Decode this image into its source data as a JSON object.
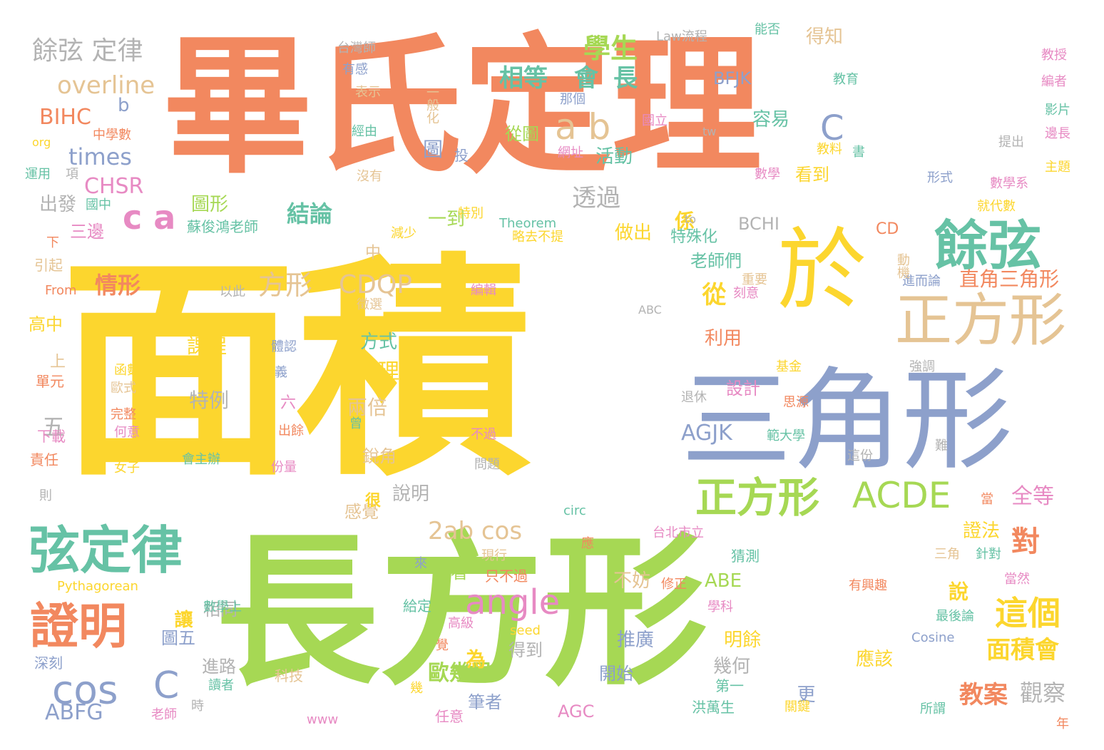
{
  "palette": {
    "orange": "#f2885f",
    "yellow": "#fcd62e",
    "green": "#a6d854",
    "blue": "#8da0cb",
    "teal": "#66c2a5",
    "pink": "#e78ac3",
    "tan": "#e5c494",
    "gray": "#b3b3b3"
  },
  "words": [
    {
      "text": "畢氏定理",
      "color": "orange"
    },
    {
      "text": "面積",
      "color": "yellow"
    },
    {
      "text": "長方形",
      "color": "green"
    },
    {
      "text": "三角形",
      "color": "blue"
    },
    {
      "text": "於",
      "color": "yellow"
    },
    {
      "text": "正方形",
      "color": "tan"
    },
    {
      "text": "餘弦",
      "color": "teal"
    },
    {
      "text": "弦定律",
      "color": "teal"
    },
    {
      "text": "證明",
      "color": "orange"
    },
    {
      "text": "正方形",
      "color": "green"
    },
    {
      "text": "ACDE",
      "color": "green"
    },
    {
      "text": "angle",
      "color": "pink"
    },
    {
      "text": "cos",
      "color": "blue"
    },
    {
      "text": "C",
      "color": "blue"
    },
    {
      "text": "a b",
      "color": "tan"
    },
    {
      "text": "c a",
      "color": "pink"
    },
    {
      "text": "C",
      "color": "blue"
    },
    {
      "text": "這個",
      "color": "yellow"
    },
    {
      "text": "對",
      "color": "orange"
    },
    {
      "text": "餘弦 定律",
      "color": "gray"
    },
    {
      "text": "overline",
      "color": "tan"
    },
    {
      "text": "學生",
      "color": "green"
    },
    {
      "text": "相等",
      "color": "teal"
    },
    {
      "text": "會",
      "color": "teal"
    },
    {
      "text": "長",
      "color": "teal"
    },
    {
      "text": "times",
      "color": "blue"
    },
    {
      "text": "BIHC",
      "color": "orange"
    },
    {
      "text": "CHSR",
      "color": "pink"
    },
    {
      "text": "b",
      "color": "blue"
    },
    {
      "text": "透過",
      "color": "gray"
    },
    {
      "text": "方形",
      "color": "tan"
    },
    {
      "text": "CDQP",
      "color": "tan"
    },
    {
      "text": "AGJK",
      "color": "blue"
    },
    {
      "text": "2ab cos",
      "color": "tan"
    },
    {
      "text": "面積會",
      "color": "yellow"
    },
    {
      "text": "教案",
      "color": "orange"
    },
    {
      "text": "觀察",
      "color": "gray"
    },
    {
      "text": "歐幾里",
      "color": "green"
    },
    {
      "text": "ABFG",
      "color": "blue"
    },
    {
      "text": "情形",
      "color": "orange"
    },
    {
      "text": "結論",
      "color": "teal"
    },
    {
      "text": "課程",
      "color": "yellow"
    },
    {
      "text": "特例",
      "color": "gray"
    },
    {
      "text": "同理",
      "color": "yellow"
    },
    {
      "text": "方式",
      "color": "teal"
    },
    {
      "text": "兩倍",
      "color": "tan"
    },
    {
      "text": "從",
      "color": "yellow"
    },
    {
      "text": "直角三角形",
      "color": "orange"
    },
    {
      "text": "全等",
      "color": "pink"
    },
    {
      "text": "圖",
      "color": "blue"
    },
    {
      "text": "投",
      "color": "blue"
    },
    {
      "text": "活動",
      "color": "teal"
    },
    {
      "text": "從圖",
      "color": "green"
    },
    {
      "text": "容易",
      "color": "teal"
    },
    {
      "text": "BFJK",
      "color": "blue"
    },
    {
      "text": "得知",
      "color": "tan"
    },
    {
      "text": "看到",
      "color": "yellow"
    },
    {
      "text": "圖形",
      "color": "green"
    },
    {
      "text": "一到",
      "color": "green"
    },
    {
      "text": "三邊",
      "color": "pink"
    },
    {
      "text": "出發",
      "color": "gray"
    },
    {
      "text": "做出",
      "color": "yellow"
    },
    {
      "text": "係",
      "color": "yellow"
    },
    {
      "text": "特殊化",
      "color": "teal"
    },
    {
      "text": "BCHI",
      "color": "gray"
    },
    {
      "text": "CD",
      "color": "orange"
    },
    {
      "text": "老師們",
      "color": "teal"
    },
    {
      "text": "利用",
      "color": "orange"
    },
    {
      "text": "設計",
      "color": "pink"
    },
    {
      "text": "說明",
      "color": "gray"
    },
    {
      "text": "感覺",
      "color": "tan"
    },
    {
      "text": "銳角",
      "color": "tan"
    },
    {
      "text": "很",
      "color": "yellow"
    },
    {
      "text": "不妨",
      "color": "tan"
    },
    {
      "text": "ABE",
      "color": "green"
    },
    {
      "text": "推廣",
      "color": "blue"
    },
    {
      "text": "開始",
      "color": "blue"
    },
    {
      "text": "明餘",
      "color": "yellow"
    },
    {
      "text": "幾何",
      "color": "gray"
    },
    {
      "text": "應該",
      "color": "yellow"
    },
    {
      "text": "證法",
      "color": "yellow"
    },
    {
      "text": "說",
      "color": "yellow"
    },
    {
      "text": "更",
      "color": "blue"
    },
    {
      "text": "筆者",
      "color": "blue"
    },
    {
      "text": "為",
      "color": "yellow"
    },
    {
      "text": "得到",
      "color": "gray"
    },
    {
      "text": "讓",
      "color": "yellow"
    },
    {
      "text": "相同",
      "color": "gray"
    },
    {
      "text": "圖五",
      "color": "blue"
    },
    {
      "text": "進路",
      "color": "gray"
    },
    {
      "text": "看看",
      "color": "green"
    },
    {
      "text": "AGC",
      "color": "pink"
    },
    {
      "text": "五",
      "color": "gray"
    },
    {
      "text": "高中",
      "color": "yellow"
    },
    {
      "text": "上",
      "color": "tan"
    },
    {
      "text": "中",
      "color": "tan"
    },
    {
      "text": "下",
      "color": "orange"
    },
    {
      "text": "引起",
      "color": "tan"
    },
    {
      "text": "From",
      "color": "orange"
    },
    {
      "text": "單元",
      "color": "orange"
    },
    {
      "text": "下載",
      "color": "pink"
    },
    {
      "text": "責任",
      "color": "orange"
    },
    {
      "text": "則",
      "color": "gray"
    },
    {
      "text": "深刻",
      "color": "blue"
    },
    {
      "text": "Pythagorean",
      "color": "yellow"
    },
    {
      "text": "數學上",
      "color": "teal"
    },
    {
      "text": "時",
      "color": "gray"
    },
    {
      "text": "老師",
      "color": "pink"
    },
    {
      "text": "讀者",
      "color": "teal"
    },
    {
      "text": "科技",
      "color": "tan"
    },
    {
      "text": "幾",
      "color": "yellow"
    },
    {
      "text": "www",
      "color": "pink"
    },
    {
      "text": "任意",
      "color": "pink"
    },
    {
      "text": "給定",
      "color": "teal"
    },
    {
      "text": "高級",
      "color": "pink"
    },
    {
      "text": "覺",
      "color": "orange"
    },
    {
      "text": "seed",
      "color": "yellow"
    },
    {
      "text": "來",
      "color": "blue"
    },
    {
      "text": "只不過",
      "color": "orange"
    },
    {
      "text": "現行",
      "color": "tan"
    },
    {
      "text": "應",
      "color": "orange"
    },
    {
      "text": "circ",
      "color": "teal"
    },
    {
      "text": "台北市立",
      "color": "pink"
    },
    {
      "text": "修正",
      "color": "orange"
    },
    {
      "text": "猜測",
      "color": "teal"
    },
    {
      "text": "第一",
      "color": "teal"
    },
    {
      "text": "洪萬生",
      "color": "teal"
    },
    {
      "text": "學科",
      "color": "pink"
    },
    {
      "text": "關鍵",
      "color": "yellow"
    },
    {
      "text": "有興趣",
      "color": "orange"
    },
    {
      "text": "所謂",
      "color": "teal"
    },
    {
      "text": "年",
      "color": "orange"
    },
    {
      "text": "Cosine",
      "color": "blue"
    },
    {
      "text": "最後論",
      "color": "teal"
    },
    {
      "text": "三角",
      "color": "tan"
    },
    {
      "text": "針對",
      "color": "teal"
    },
    {
      "text": "當然",
      "color": "pink"
    },
    {
      "text": "當",
      "color": "orange"
    },
    {
      "text": "這份",
      "color": "gray"
    },
    {
      "text": "範大學",
      "color": "teal"
    },
    {
      "text": "難",
      "color": "gray"
    },
    {
      "text": "退休",
      "color": "gray"
    },
    {
      "text": "思源",
      "color": "orange"
    },
    {
      "text": "強調",
      "color": "gray"
    },
    {
      "text": "基金",
      "color": "yellow"
    },
    {
      "text": "刻意",
      "color": "pink"
    },
    {
      "text": "重要",
      "color": "tan"
    },
    {
      "text": "進而論",
      "color": "blue"
    },
    {
      "text": "動機",
      "color": "tan"
    },
    {
      "text": "ABC",
      "color": "gray"
    },
    {
      "text": "徵選",
      "color": "tan"
    },
    {
      "text": "編輯",
      "color": "pink"
    },
    {
      "text": "以此",
      "color": "gray"
    },
    {
      "text": "略去不提",
      "color": "yellow"
    },
    {
      "text": "Theorem",
      "color": "teal"
    },
    {
      "text": "特別",
      "color": "yellow"
    },
    {
      "text": "減少",
      "color": "yellow"
    },
    {
      "text": "to",
      "color": "gray"
    },
    {
      "text": "蘇俊鴻老師",
      "color": "teal"
    },
    {
      "text": "國中",
      "color": "teal"
    },
    {
      "text": "運用",
      "color": "teal"
    },
    {
      "text": "項",
      "color": "gray"
    },
    {
      "text": "org",
      "color": "yellow"
    },
    {
      "text": "中學數",
      "color": "orange"
    },
    {
      "text": "沒有",
      "color": "tan"
    },
    {
      "text": "經由",
      "color": "teal"
    },
    {
      "text": "表示",
      "color": "tan"
    },
    {
      "text": "有感",
      "color": "blue"
    },
    {
      "text": "台灣師",
      "color": "gray"
    },
    {
      "text": "一般化",
      "color": "tan"
    },
    {
      "text": "那個",
      "color": "blue"
    },
    {
      "text": "Law流程",
      "color": "gray"
    },
    {
      "text": "能否",
      "color": "teal"
    },
    {
      "text": "網址",
      "color": "pink"
    },
    {
      "text": "國立",
      "color": "pink"
    },
    {
      "text": "tw",
      "color": "gray"
    },
    {
      "text": "教育",
      "color": "teal"
    },
    {
      "text": "教料",
      "color": "yellow"
    },
    {
      "text": "書",
      "color": "teal"
    },
    {
      "text": "數學",
      "color": "pink"
    },
    {
      "text": "教授",
      "color": "pink"
    },
    {
      "text": "編者",
      "color": "pink"
    },
    {
      "text": "影片",
      "color": "teal"
    },
    {
      "text": "邊長",
      "color": "pink"
    },
    {
      "text": "提出",
      "color": "gray"
    },
    {
      "text": "主題",
      "color": "yellow"
    },
    {
      "text": "形式",
      "color": "blue"
    },
    {
      "text": "數學系",
      "color": "pink"
    },
    {
      "text": "就代數",
      "color": "yellow"
    },
    {
      "text": "函數",
      "color": "yellow"
    },
    {
      "text": "歐式",
      "color": "tan"
    },
    {
      "text": "完整",
      "color": "orange"
    },
    {
      "text": "何意",
      "color": "pink"
    },
    {
      "text": "女子",
      "color": "yellow"
    },
    {
      "text": "體認",
      "color": "blue"
    },
    {
      "text": "義",
      "color": "blue"
    },
    {
      "text": "六",
      "color": "pink"
    },
    {
      "text": "出餘",
      "color": "orange"
    },
    {
      "text": "份量",
      "color": "pink"
    },
    {
      "text": "會主辦",
      "color": "teal"
    },
    {
      "text": "曾",
      "color": "teal"
    },
    {
      "text": "不過",
      "color": "pink"
    },
    {
      "text": "問題",
      "color": "gray"
    }
  ]
}
